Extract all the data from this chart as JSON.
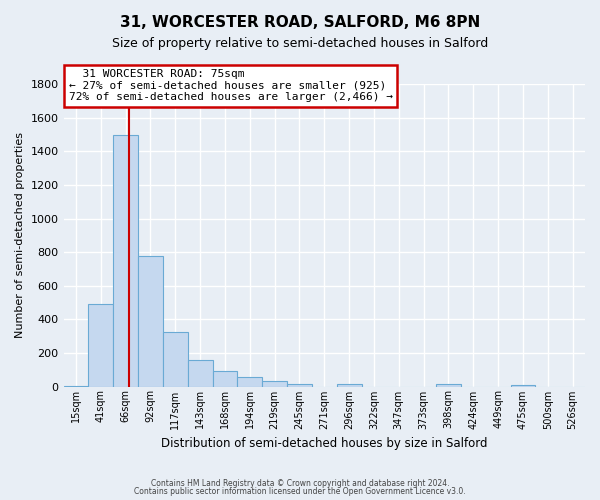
{
  "title": "31, WORCESTER ROAD, SALFORD, M6 8PN",
  "subtitle": "Size of property relative to semi-detached houses in Salford",
  "xlabel": "Distribution of semi-detached houses by size in Salford",
  "ylabel": "Number of semi-detached properties",
  "bar_color": "#c5d8ef",
  "bar_edge_color": "#6aaad4",
  "background_color": "#e8eef5",
  "grid_color": "#ffffff",
  "bin_labels": [
    "15sqm",
    "41sqm",
    "66sqm",
    "92sqm",
    "117sqm",
    "143sqm",
    "168sqm",
    "194sqm",
    "219sqm",
    "245sqm",
    "271sqm",
    "296sqm",
    "322sqm",
    "347sqm",
    "373sqm",
    "398sqm",
    "424sqm",
    "449sqm",
    "475sqm",
    "500sqm",
    "526sqm"
  ],
  "bar_values": [
    5,
    490,
    1500,
    775,
    325,
    155,
    90,
    55,
    30,
    15,
    0,
    15,
    0,
    0,
    0,
    15,
    0,
    0,
    10,
    0,
    0
  ],
  "ylim": [
    0,
    1800
  ],
  "yticks": [
    0,
    200,
    400,
    600,
    800,
    1000,
    1200,
    1400,
    1600,
    1800
  ],
  "property_label": "31 WORCESTER ROAD: 75sqm",
  "pct_smaller": 27,
  "n_smaller": 925,
  "pct_larger": 72,
  "n_larger": 2466,
  "red_line_x": 2.15,
  "red_line_color": "#cc0000",
  "annotation_box_color": "#ffffff",
  "annotation_box_edge": "#cc0000",
  "footer_line1": "Contains HM Land Registry data © Crown copyright and database right 2024.",
  "footer_line2": "Contains public sector information licensed under the Open Government Licence v3.0."
}
